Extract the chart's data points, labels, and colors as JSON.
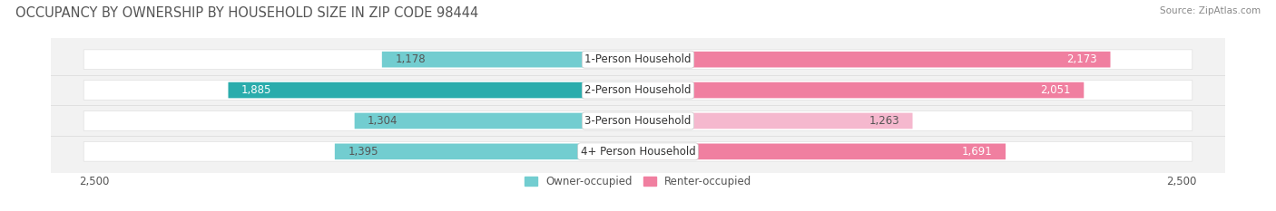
{
  "title": "OCCUPANCY BY OWNERSHIP BY HOUSEHOLD SIZE IN ZIP CODE 98444",
  "source": "Source: ZipAtlas.com",
  "categories": [
    "1-Person Household",
    "2-Person Household",
    "3-Person Household",
    "4+ Person Household"
  ],
  "owner_values": [
    1178,
    1885,
    1304,
    1395
  ],
  "renter_values": [
    2173,
    2051,
    1263,
    1691
  ],
  "owner_colors": [
    "#72CDD0",
    "#2AACAC",
    "#72CDD0",
    "#72CDD0"
  ],
  "renter_colors": [
    "#F07FA0",
    "#F07FA0",
    "#F5B8CE",
    "#F07FA0"
  ],
  "owner_label_colors": [
    "#555555",
    "#ffffff",
    "#555555",
    "#555555"
  ],
  "renter_label_colors": [
    "#ffffff",
    "#ffffff",
    "#555555",
    "#ffffff"
  ],
  "axis_max": 2500,
  "bar_height": 0.52,
  "background_color": "#ffffff",
  "plot_bg_color": "#f2f2f2",
  "bar_bg_color": "#ffffff",
  "row_bg_color": "#f7f7f7",
  "title_fontsize": 10.5,
  "label_fontsize": 8.5,
  "tick_fontsize": 8.5,
  "legend_fontsize": 8.5
}
